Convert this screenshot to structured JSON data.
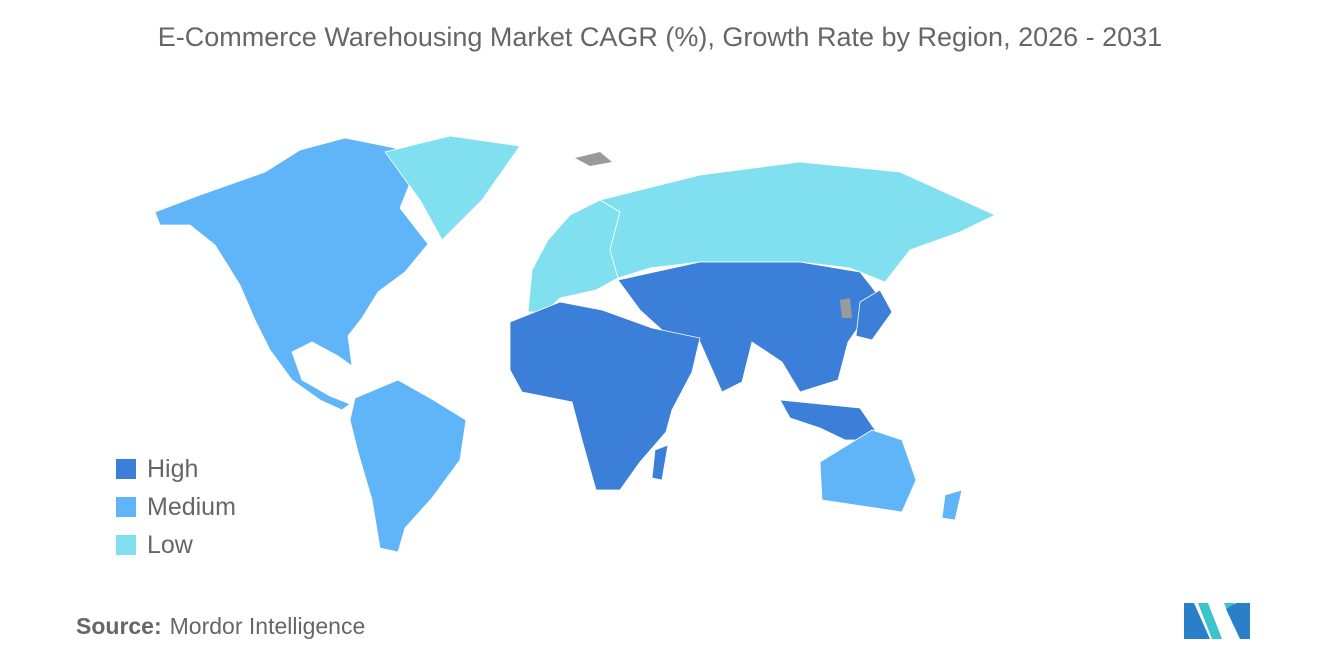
{
  "title": "E-Commerce Warehousing Market CAGR (%), Growth Rate by Region, 2026 - 2031",
  "legend": [
    {
      "label": "High",
      "color": "#3b7fd9"
    },
    {
      "label": "Medium",
      "color": "#60b5f8"
    },
    {
      "label": "Low",
      "color": "#80e0ef"
    }
  ],
  "no_data_color": "#9a9a9a",
  "regions": [
    {
      "name": "North America",
      "level": "Medium"
    },
    {
      "name": "South America",
      "level": "Medium"
    },
    {
      "name": "Europe",
      "level": "Low"
    },
    {
      "name": "Russia",
      "level": "Low"
    },
    {
      "name": "Greenland",
      "level": "Low"
    },
    {
      "name": "Asia-Pacific",
      "level": "High"
    },
    {
      "name": "Middle East and Africa",
      "level": "High"
    },
    {
      "name": "Australia and New Zealand",
      "level": "Medium"
    }
  ],
  "source": {
    "label": "Source:",
    "text": "Mordor Intelligence"
  }
}
